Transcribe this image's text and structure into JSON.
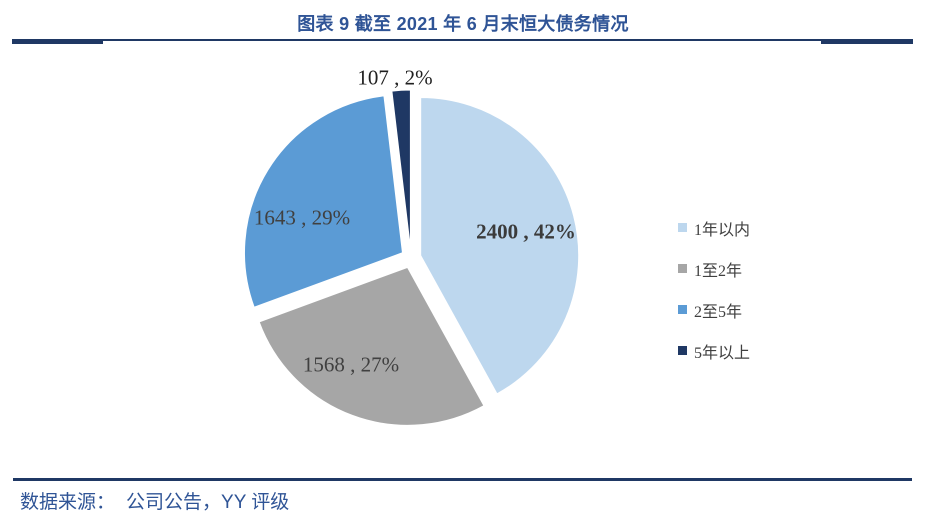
{
  "page": {
    "title": "图表 9 截至 2021 年 6 月末恒大债务情况",
    "source_label": "数据来源：",
    "source_value": "公司公告，YY 评级"
  },
  "chart_data": {
    "type": "pie",
    "title": "图表 9 截至 2021 年 6 月末恒大债务情况",
    "categories": [
      "1年以内",
      "1至2年",
      "2至5年",
      "5年以上"
    ],
    "values": [
      2400,
      1568,
      1643,
      107
    ],
    "percent_labels": [
      "42%",
      "27%",
      "29%",
      "2%"
    ],
    "slice_labels": [
      "2400 , 42%",
      "1568 , 27%",
      "1643 , 29%",
      "107 , 2%"
    ],
    "colors": [
      "#BDD7EE",
      "#A6A6A6",
      "#5B9BD5",
      "#1F3864"
    ],
    "start_angle_deg": 0,
    "direction": "clockwise",
    "exploded": true,
    "legend_position": "right"
  },
  "theme": {
    "title_color": "#2F5496",
    "rule_color": "#1F3864",
    "source_color": "#2F5496",
    "slice_label_color": "#404040",
    "legend_text_color": "#404040",
    "background": "#FFFFFF"
  }
}
